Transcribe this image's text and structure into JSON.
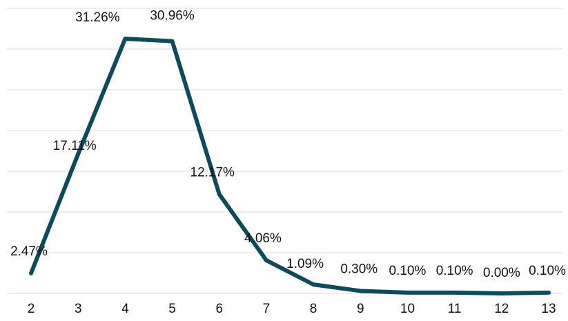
{
  "chart_data": {
    "type": "line",
    "categories": [
      "2",
      "3",
      "4",
      "5",
      "6",
      "7",
      "8",
      "9",
      "10",
      "11",
      "12",
      "13"
    ],
    "series": [
      {
        "values": [
          2.47,
          17.11,
          31.26,
          30.96,
          12.17,
          4.06,
          1.09,
          0.3,
          0.1,
          0.1,
          0.0,
          0.1
        ],
        "labels": [
          "2.47%",
          "17.11%",
          "31.26%",
          "30.96%",
          "12.17%",
          "4.06%",
          "1.09%",
          "0.30%",
          "0.10%",
          "0.10%",
          "0.00%",
          "0.10%"
        ],
        "color": "#0d4b5c"
      }
    ],
    "title": "",
    "xlabel": "",
    "ylabel": "",
    "ylim": [
      0,
      35
    ],
    "grid": true,
    "y_axis_labels_shown": false,
    "legend": "none"
  }
}
